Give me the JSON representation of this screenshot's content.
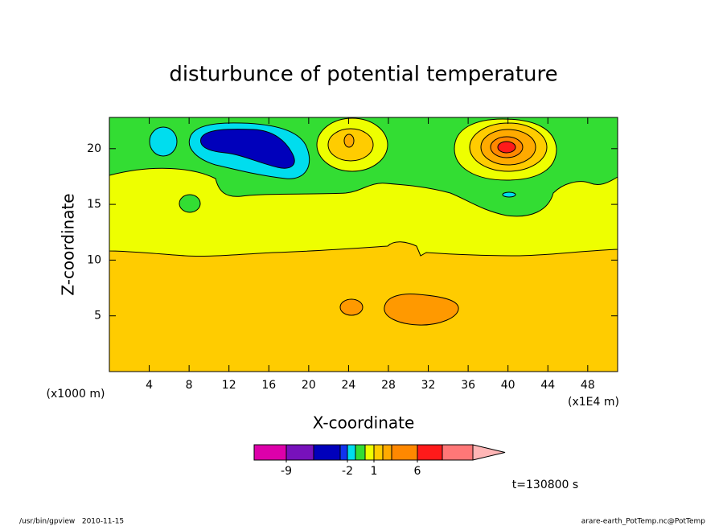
{
  "chart_data": {
    "type": "contour",
    "title": "disturbunce of potential temperature",
    "x_label": "X-coordinate",
    "y_label": "Z-coordinate",
    "x_unit": "(x1E4 m)",
    "y_unit": "(x1000 m)",
    "xlim": [
      0,
      51
    ],
    "xticks": [
      4,
      8,
      12,
      16,
      20,
      24,
      28,
      32,
      36,
      40,
      44,
      48
    ],
    "ylim": [
      0,
      22.8
    ],
    "yticks": [
      5,
      10,
      15,
      20
    ],
    "colorbar": {
      "levels": [
        -12,
        -9,
        -6,
        -3,
        -2,
        -1,
        0,
        1,
        2,
        3,
        6,
        9,
        12
      ],
      "colors": [
        "#dd00aa",
        "#7711bb",
        "#0000bb",
        "#1133ee",
        "#00ddee",
        "#33dd33",
        "#eeff00",
        "#ffcc00",
        "#ffaa00",
        "#ff8800",
        "#ff1a1a",
        "#ff7777"
      ],
      "over_color": "#ffb6b6",
      "ticks": [
        -9,
        -2,
        1,
        6
      ]
    },
    "annotation": "t=130800 s",
    "footer_left": "/usr/bin/gpview   2010-11-15",
    "footer_right": "arare-earth_PotTemp.nc@PotTemp"
  }
}
